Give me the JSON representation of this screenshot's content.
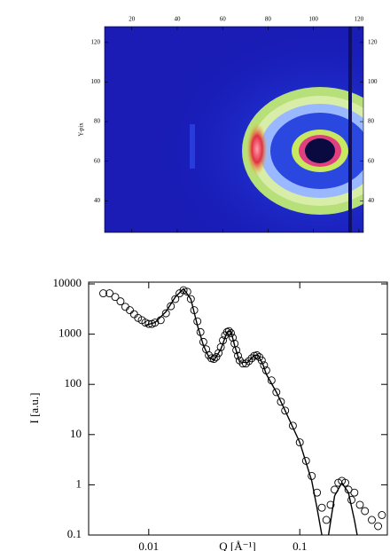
{
  "chart_data": [
    {
      "type": "heatmap",
      "ylabel": "Y-pix",
      "xlim": [
        8,
        122
      ],
      "ylim": [
        24,
        128
      ],
      "xticks": [
        20,
        40,
        60,
        80,
        100,
        120
      ],
      "yticks": [
        40,
        60,
        80,
        100,
        120
      ]
    },
    {
      "type": "scatter",
      "xlabel": "Q [Å⁻¹]",
      "ylabel": "I [a.u.]",
      "xscale": "log",
      "yscale": "log",
      "xlim": [
        0.004,
        0.38
      ],
      "ylim": [
        0.1,
        10000
      ],
      "xticks": [
        0.01,
        0.1
      ],
      "yticks": [
        0.1,
        1,
        10,
        100,
        1000,
        10000
      ],
      "series": [
        {
          "mode": "markers",
          "color": "#000000",
          "x": [
            0.005,
            0.0055,
            0.006,
            0.0065,
            0.007,
            0.0075,
            0.008,
            0.0085,
            0.009,
            0.0095,
            0.01,
            0.0105,
            0.011,
            0.012,
            0.013,
            0.014,
            0.015,
            0.016,
            0.017,
            0.018,
            0.019,
            0.02,
            0.021,
            0.022,
            0.023,
            0.024,
            0.025,
            0.026,
            0.027,
            0.028,
            0.029,
            0.03,
            0.031,
            0.032,
            0.033,
            0.034,
            0.035,
            0.036,
            0.037,
            0.038,
            0.039,
            0.04,
            0.042,
            0.044,
            0.046,
            0.048,
            0.05,
            0.052,
            0.054,
            0.056,
            0.058,
            0.06,
            0.065,
            0.07,
            0.075,
            0.08,
            0.09,
            0.1,
            0.11,
            0.12,
            0.13,
            0.14,
            0.15,
            0.16,
            0.17,
            0.18,
            0.19,
            0.2,
            0.21,
            0.22,
            0.23,
            0.25,
            0.27,
            0.3,
            0.33,
            0.35
          ],
          "values": [
            6500,
            6500,
            5500,
            4500,
            3500,
            3000,
            2500,
            2100,
            1900,
            1700,
            1600,
            1600,
            1700,
            1900,
            2600,
            3600,
            5000,
            6500,
            7500,
            7000,
            5000,
            3000,
            1800,
            1100,
            700,
            500,
            380,
            330,
            320,
            350,
            420,
            550,
            750,
            950,
            1100,
            1150,
            1050,
            850,
            650,
            480,
            370,
            300,
            260,
            260,
            290,
            330,
            370,
            380,
            350,
            300,
            240,
            190,
            120,
            70,
            45,
            30,
            15,
            7,
            3,
            1.5,
            0.7,
            0.35,
            0.2,
            0.4,
            0.8,
            1.1,
            1.2,
            1.1,
            0.8,
            0.5,
            0.7,
            0.4,
            0.3,
            0.2,
            0.15,
            0.25
          ]
        },
        {
          "mode": "line",
          "color": "#000000",
          "x": [
            0.0095,
            0.011,
            0.013,
            0.015,
            0.017,
            0.019,
            0.021,
            0.023,
            0.025,
            0.027,
            0.03,
            0.033,
            0.035,
            0.037,
            0.04,
            0.045,
            0.05,
            0.053,
            0.057,
            0.06,
            0.07,
            0.08,
            0.1,
            0.12,
            0.13,
            0.14,
            0.148,
            0.155,
            0.17,
            0.19,
            0.21,
            0.23,
            0.24
          ],
          "values": [
            1500,
            1700,
            2800,
            5500,
            8000,
            5000,
            1500,
            600,
            350,
            300,
            500,
            1100,
            1150,
            600,
            280,
            270,
            380,
            380,
            250,
            160,
            70,
            30,
            7,
            1.2,
            0.35,
            0.1,
            null,
            0.1,
            0.6,
            1.1,
            0.7,
            0.2,
            0.1
          ]
        }
      ]
    }
  ]
}
